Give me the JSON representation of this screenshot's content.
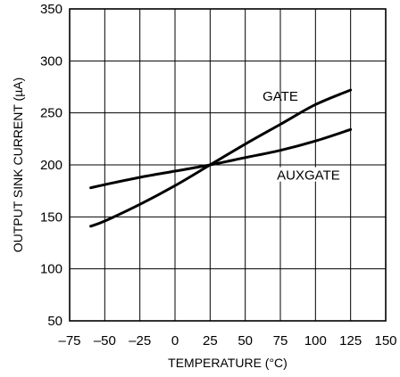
{
  "chart_data": {
    "type": "line",
    "title": "",
    "xlabel": "TEMPERATURE (°C)",
    "ylabel": "OUTPUT SINK CURRENT (µA)",
    "xlim": [
      -75,
      150
    ],
    "ylim": [
      50,
      350
    ],
    "x_ticks": [
      -75,
      -50,
      -25,
      0,
      25,
      50,
      75,
      100,
      125,
      150
    ],
    "x_tick_labels": [
      "–75",
      "–50",
      "–25",
      "0",
      "25",
      "50",
      "75",
      "100",
      "125",
      "150"
    ],
    "y_ticks": [
      50,
      100,
      150,
      200,
      250,
      300,
      350
    ],
    "y_tick_labels": [
      "50",
      "100",
      "150",
      "200",
      "250",
      "300",
      "350"
    ],
    "grid": true,
    "series": [
      {
        "name": "GATE",
        "x": [
          -60,
          -50,
          -25,
          0,
          25,
          50,
          75,
          100,
          125
        ],
        "values": [
          141,
          146,
          162,
          180,
          200,
          220,
          239,
          258,
          272
        ]
      },
      {
        "name": "AUXGATE",
        "x": [
          -60,
          -50,
          -25,
          0,
          25,
          50,
          75,
          100,
          125
        ],
        "values": [
          178,
          181,
          188,
          194,
          200,
          207,
          214,
          223,
          234
        ]
      }
    ]
  }
}
